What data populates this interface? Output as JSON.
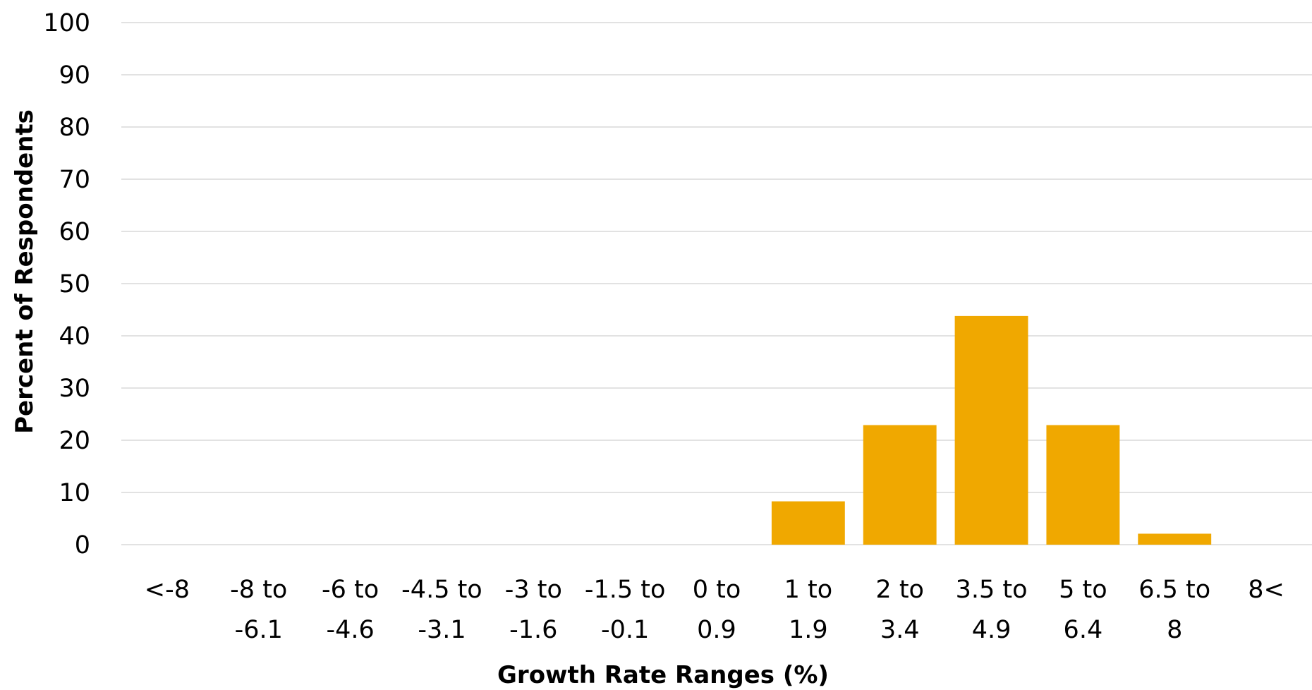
{
  "chart_data": {
    "type": "bar",
    "title": "",
    "xlabel": "Growth Rate Ranges (%)",
    "ylabel": "Percent of Respondents",
    "ylim": [
      0,
      100
    ],
    "yticks": [
      0,
      10,
      20,
      30,
      40,
      50,
      60,
      70,
      80,
      90,
      100
    ],
    "grid": true,
    "categories": [
      [
        "<-8"
      ],
      [
        "-8 to",
        "-6.1"
      ],
      [
        "-6 to",
        "-4.6"
      ],
      [
        "-4.5 to",
        "-3.1"
      ],
      [
        "-3 to",
        "-1.6"
      ],
      [
        "-1.5 to",
        "-0.1"
      ],
      [
        "0 to",
        "0.9"
      ],
      [
        "1 to",
        "1.9"
      ],
      [
        "2 to",
        "3.4"
      ],
      [
        "3.5 to",
        "4.9"
      ],
      [
        "5 to",
        "6.4"
      ],
      [
        "6.5 to",
        "8"
      ],
      [
        "8<"
      ]
    ],
    "values": [
      0,
      0,
      0,
      0,
      0,
      0,
      0,
      8.3,
      22.9,
      43.8,
      22.9,
      2.1,
      0
    ],
    "bar_color": "#f0a800",
    "grid_color": "#d9d9d9"
  }
}
